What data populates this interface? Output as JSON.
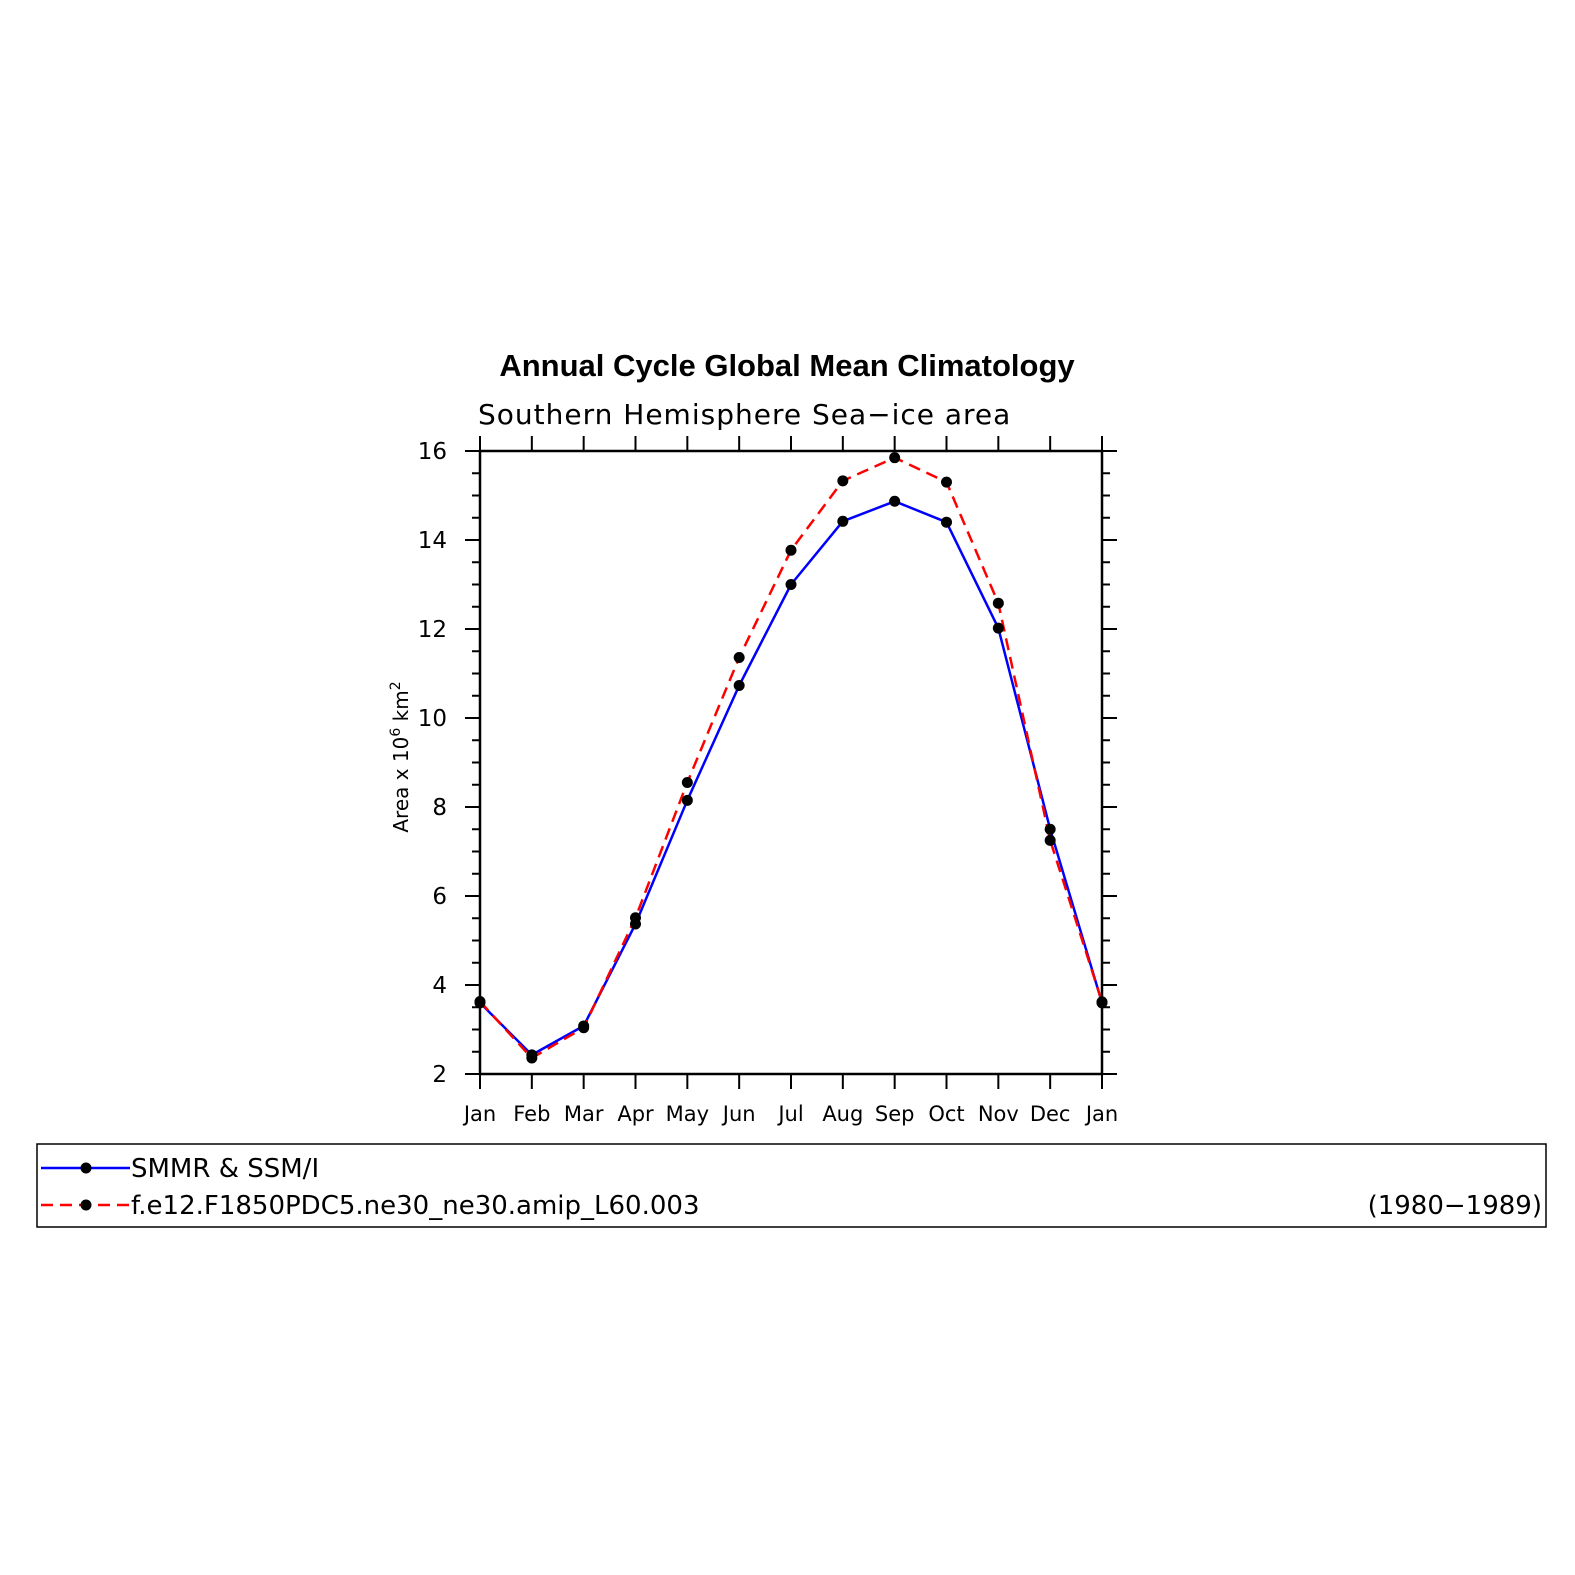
{
  "chart_data": {
    "type": "line",
    "title": "Annual Cycle Global Mean Climatology",
    "subtitle": "Southern Hemisphere Sea−ice area",
    "ylabel": {
      "base": "Area x 10",
      "exp1": "6",
      "mid": " km",
      "exp2": "2"
    },
    "ylim": [
      2,
      16
    ],
    "yticks": [
      "2",
      "4",
      "6",
      "8",
      "10",
      "12",
      "14",
      "16"
    ],
    "categories": [
      "Jan",
      "Feb",
      "Mar",
      "Apr",
      "May",
      "Jun",
      "Jul",
      "Aug",
      "Sep",
      "Oct",
      "Nov",
      "Dec",
      "Jan"
    ],
    "series": [
      {
        "name": "SMMR & SSM/I",
        "color": "#0000ff",
        "dash": "solid",
        "values": [
          3.6,
          2.43,
          3.08,
          5.37,
          8.15,
          10.73,
          13.0,
          14.42,
          14.87,
          14.4,
          12.02,
          7.5,
          3.6
        ]
      },
      {
        "name": "f.e12.F1850PDC5.ne30_ne30.amip_L60.003",
        "color": "#ff0000",
        "dash": "dashed",
        "values": [
          3.63,
          2.36,
          3.04,
          5.51,
          8.55,
          11.36,
          13.77,
          15.33,
          15.85,
          15.3,
          12.58,
          7.25,
          3.62
        ]
      }
    ],
    "legend_period": "(1980−1989)",
    "grid": false,
    "legend_placement": "bottom"
  }
}
